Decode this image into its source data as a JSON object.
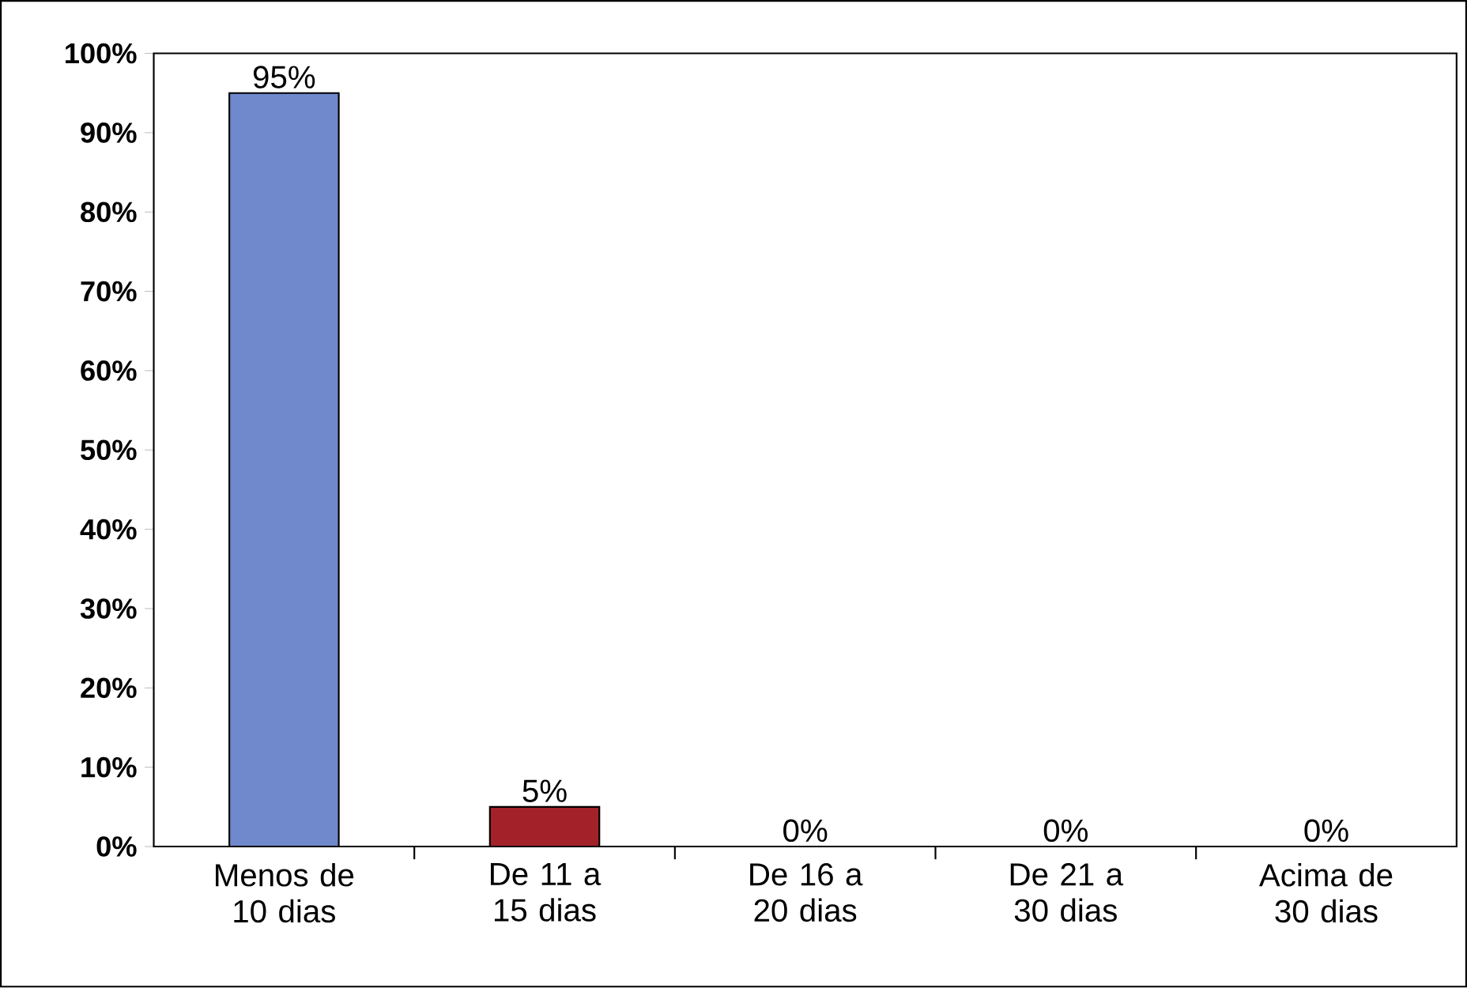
{
  "chart_data": {
    "type": "bar",
    "categories": [
      "Menos de 10 dias",
      "De 11 a 15 dias",
      "De 16 a 20 dias",
      "De 21 a 30 dias",
      "Acima de 30 dias"
    ],
    "values": [
      95,
      5,
      0,
      0,
      0
    ],
    "colors": [
      "#7088cc",
      "#a3222a",
      "#7088cc",
      "#7088cc",
      "#7088cc"
    ],
    "value_labels": [
      "95%",
      "5%",
      "0%",
      "0%",
      "0%"
    ],
    "ylim": [
      0,
      100
    ],
    "yticks": [
      {
        "value": 0,
        "label": "0%"
      },
      {
        "value": 10,
        "label": "10%"
      },
      {
        "value": 20,
        "label": "20%"
      },
      {
        "value": 30,
        "label": "30%"
      },
      {
        "value": 40,
        "label": "40%"
      },
      {
        "value": 50,
        "label": "50%"
      },
      {
        "value": 60,
        "label": "60%"
      },
      {
        "value": 70,
        "label": "70%"
      },
      {
        "value": 80,
        "label": "80%"
      },
      {
        "value": 90,
        "label": "90%"
      },
      {
        "value": 100,
        "label": "100%"
      }
    ]
  }
}
